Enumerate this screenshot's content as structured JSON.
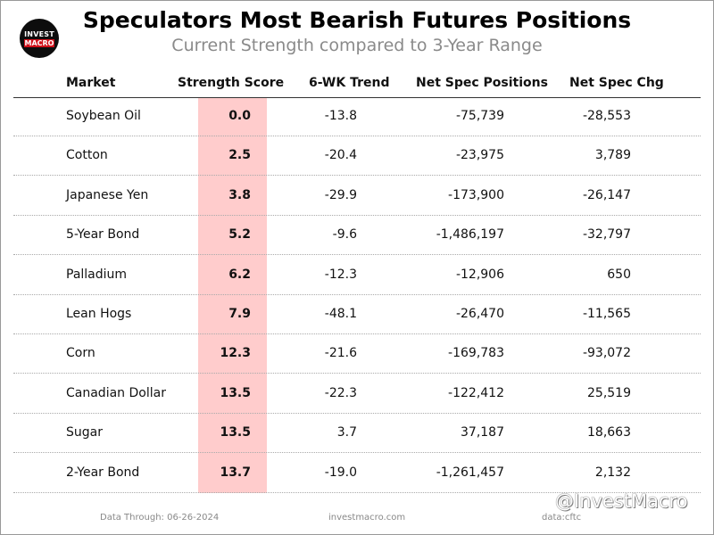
{
  "header": {
    "logo_line1": "INVEST",
    "logo_line2": "MACRO",
    "title": "Speculators Most Bearish Futures Positions",
    "subtitle": "Current Strength compared to 3-Year Range"
  },
  "colors": {
    "highlight": "#ffcccc",
    "logo_red": "#d0101a",
    "subtitle": "#8a8a8a"
  },
  "chart_data": {
    "type": "table",
    "columns": [
      "Market",
      "Strength Score",
      "6-WK Trend",
      "Net Spec Positions",
      "Net Spec Chg"
    ],
    "rows": [
      {
        "market": "Soybean Oil",
        "score": "0.0",
        "trend": "-13.8",
        "net": "-75,739",
        "chg": "-28,553"
      },
      {
        "market": "Cotton",
        "score": "2.5",
        "trend": "-20.4",
        "net": "-23,975",
        "chg": "3,789"
      },
      {
        "market": "Japanese Yen",
        "score": "3.8",
        "trend": "-29.9",
        "net": "-173,900",
        "chg": "-26,147"
      },
      {
        "market": "5-Year Bond",
        "score": "5.2",
        "trend": "-9.6",
        "net": "-1,486,197",
        "chg": "-32,797"
      },
      {
        "market": "Palladium",
        "score": "6.2",
        "trend": "-12.3",
        "net": "-12,906",
        "chg": "650"
      },
      {
        "market": "Lean Hogs",
        "score": "7.9",
        "trend": "-48.1",
        "net": "-26,470",
        "chg": "-11,565"
      },
      {
        "market": "Corn",
        "score": "12.3",
        "trend": "-21.6",
        "net": "-169,783",
        "chg": "-93,072"
      },
      {
        "market": "Canadian Dollar",
        "score": "13.5",
        "trend": "-22.3",
        "net": "-122,412",
        "chg": "25,519"
      },
      {
        "market": "Sugar",
        "score": "13.5",
        "trend": "3.7",
        "net": "37,187",
        "chg": "18,663"
      },
      {
        "market": "2-Year Bond",
        "score": "13.7",
        "trend": "-19.0",
        "net": "-1,261,457",
        "chg": "2,132"
      }
    ]
  },
  "footer": {
    "data_through": "Data Through: 06-26-2024",
    "site": "investmacro.com",
    "source": "data:cftc",
    "watermark": "@InvestMacro"
  }
}
